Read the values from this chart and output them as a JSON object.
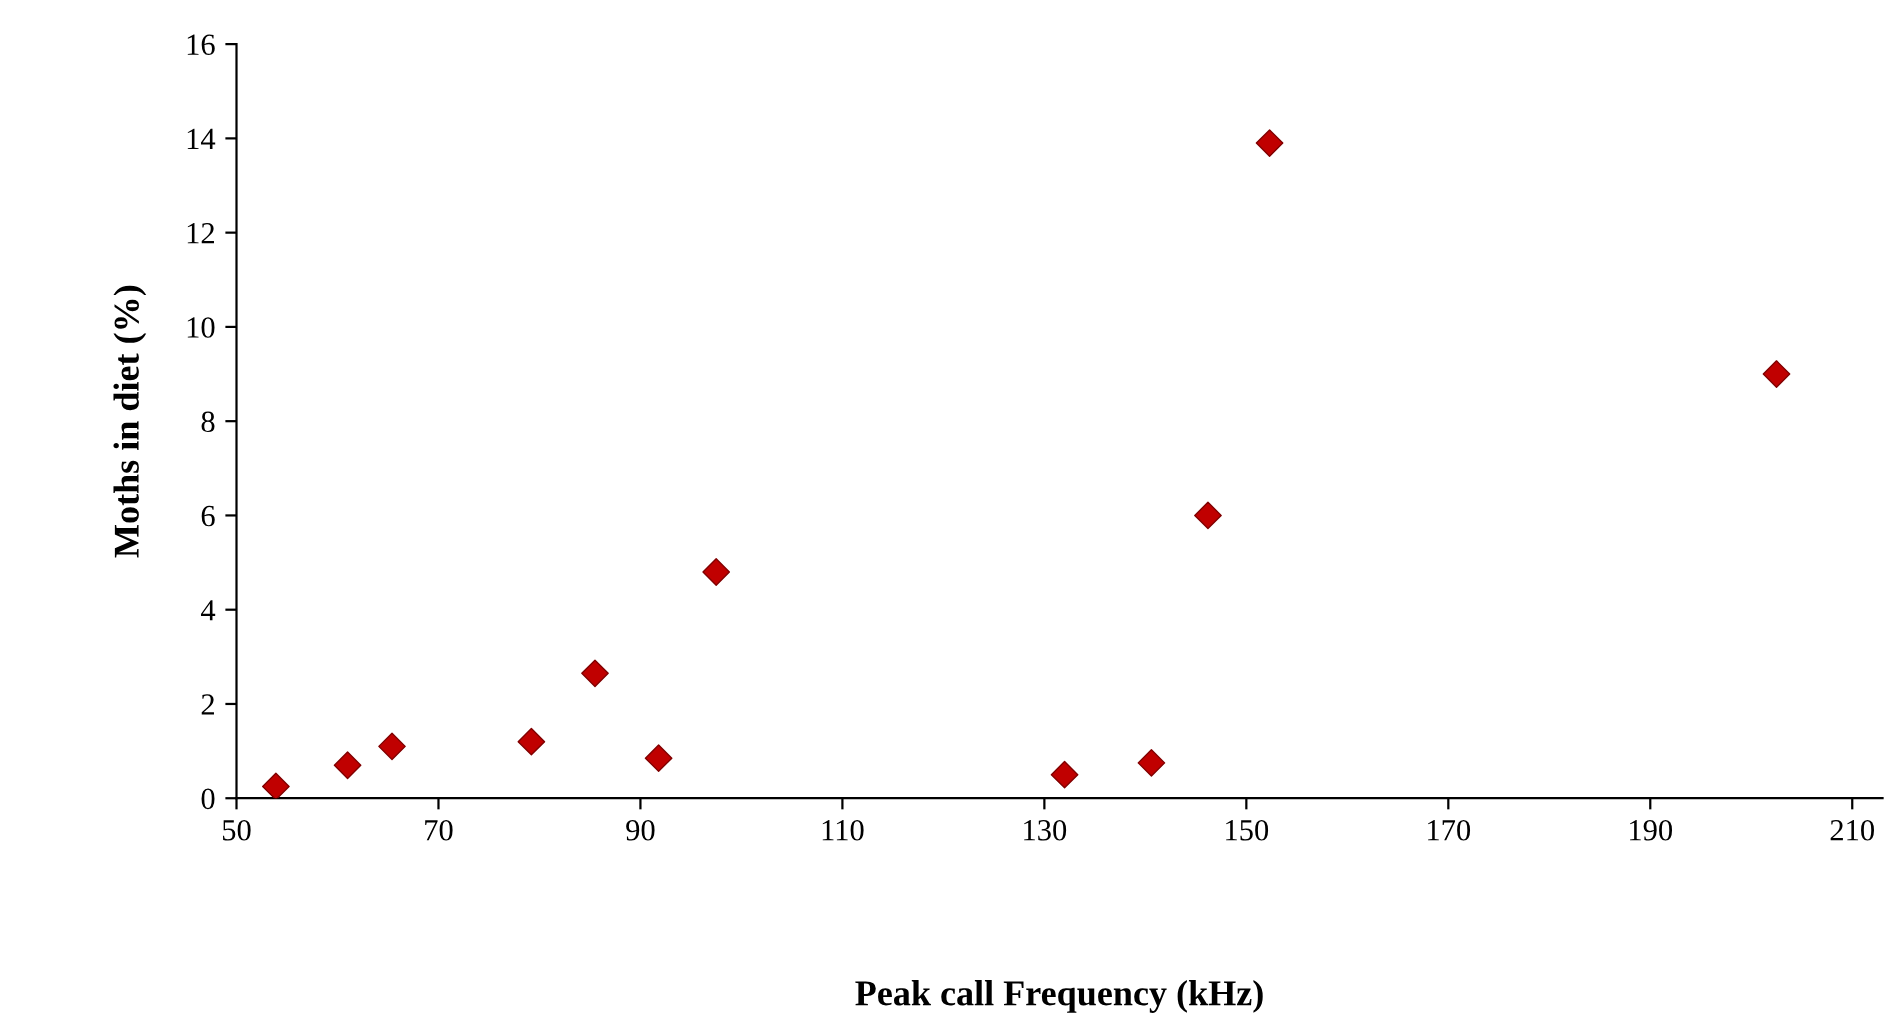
{
  "chart_data": {
    "type": "scatter",
    "xlabel": "Peak call Frequency (kHz)",
    "ylabel": "Moths in diet (%)",
    "x": [
      53.9,
      61.0,
      65.4,
      79.2,
      85.5,
      91.8,
      97.5,
      132,
      140.6,
      146.2,
      152.3,
      202.5
    ],
    "values": [
      0.25,
      0.7,
      1.1,
      1.2,
      2.65,
      0.85,
      4.8,
      0.5,
      0.75,
      6.0,
      13.9,
      9.0
    ],
    "color": "#c00000",
    "marker": "diamond",
    "grid": false,
    "legend": false,
    "xlim": [
      50,
      213
    ],
    "xticks": [
      50,
      70,
      90,
      110,
      130,
      150,
      170,
      190,
      210
    ],
    "ylim": [
      0,
      16
    ],
    "yticks": [
      0,
      2,
      4,
      6,
      8,
      10,
      12,
      14,
      16
    ]
  }
}
